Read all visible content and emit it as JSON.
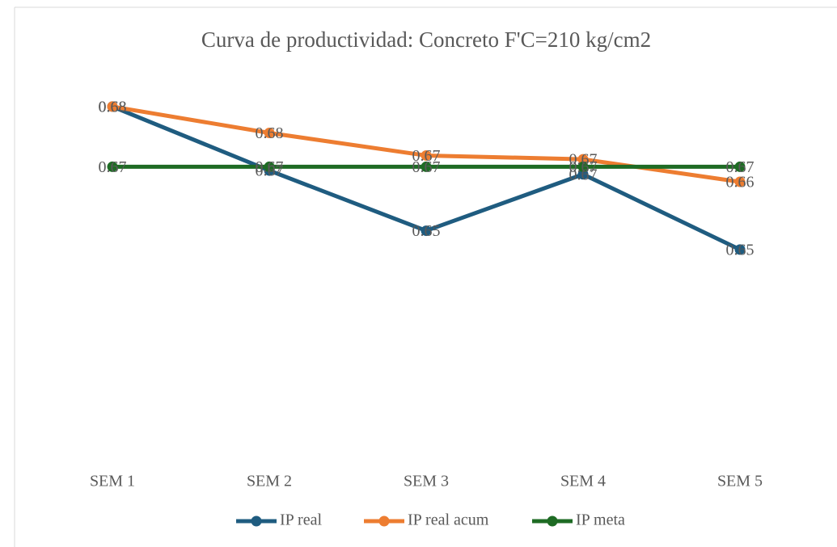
{
  "chart_data": {
    "type": "line",
    "title": "Curva de productividad: Concreto F'C=210 kg/cm2",
    "categories": [
      "SEM 1",
      "SEM 2",
      "SEM 3",
      "SEM 4",
      "SEM 5"
    ],
    "series": [
      {
        "name": "IP real",
        "color": "#1f5c80",
        "values": [
          0.684,
          0.667,
          0.651,
          0.666,
          0.646
        ],
        "value_labels": [
          "0.68",
          "0.67",
          "0.65",
          "0.67",
          "0.65"
        ]
      },
      {
        "name": "IP real acum",
        "color": "#ed7d31",
        "values": [
          0.684,
          0.677,
          0.671,
          0.67,
          0.664
        ],
        "value_labels": [
          "0.68",
          "0.68",
          "0.67",
          "0.67",
          "0.66"
        ]
      },
      {
        "name": "IP meta",
        "color": "#1e6b24",
        "values": [
          0.668,
          0.668,
          0.668,
          0.668,
          0.668
        ],
        "value_labels": [
          "0.67",
          "0.67",
          "0.67",
          "0.67",
          "0.67"
        ]
      }
    ],
    "ylim": [
      0.6,
      0.69
    ],
    "legend": "bottom"
  }
}
